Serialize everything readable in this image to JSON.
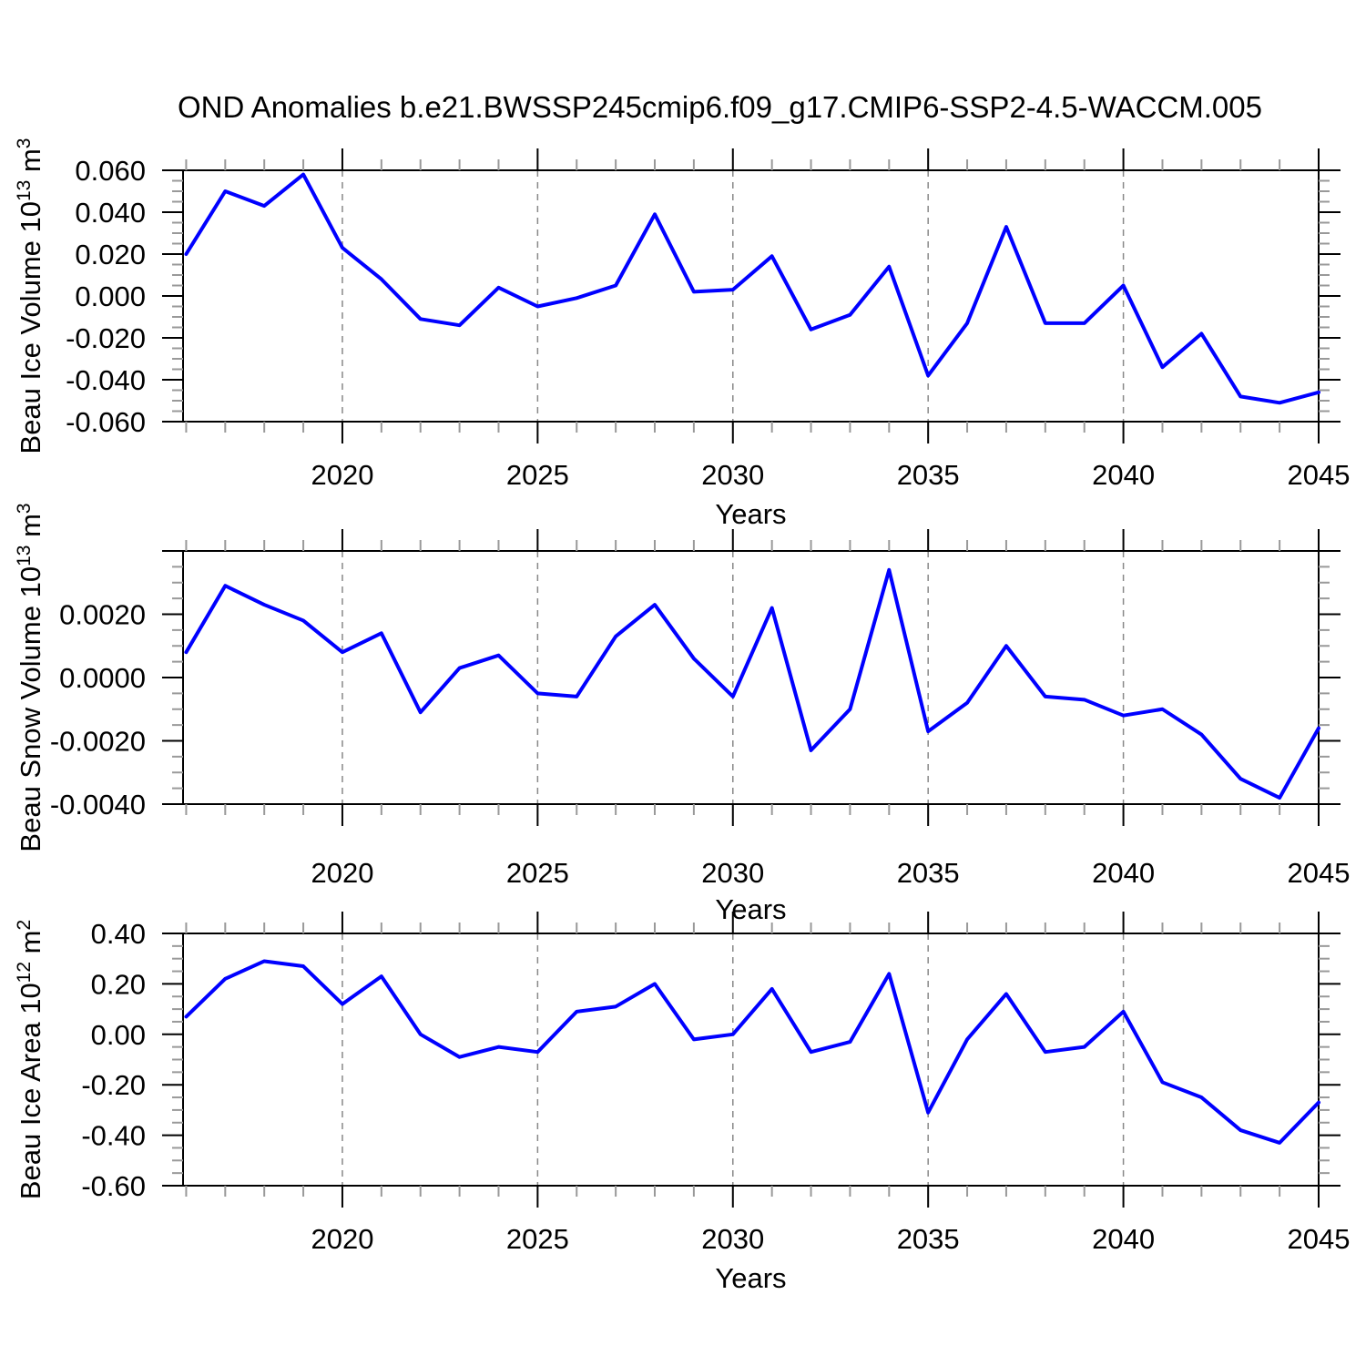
{
  "title": "OND Anomalies b.e21.BWSSP245cmip6.f09_g17.CMIP6-SSP2-4.5-WACCM.005",
  "colors": {
    "background": "#ffffff",
    "line": "#0000ff",
    "axis": "#000000",
    "minor_tick": "#999999",
    "gridline": "#888888",
    "text": "#000000"
  },
  "x_axis": {
    "label": "Years",
    "years": [
      2016,
      2017,
      2018,
      2019,
      2020,
      2021,
      2022,
      2023,
      2024,
      2025,
      2026,
      2027,
      2028,
      2029,
      2030,
      2031,
      2032,
      2033,
      2034,
      2035,
      2036,
      2037,
      2038,
      2039,
      2040,
      2041,
      2042,
      2043,
      2044,
      2045
    ],
    "major_tick_years": [
      2020,
      2025,
      2030,
      2035,
      2040,
      2045
    ],
    "tick_labels": [
      "2020",
      "2025",
      "2030",
      "2035",
      "2040",
      "2045"
    ],
    "gridline_years": [
      2020,
      2025,
      2030,
      2035,
      2040
    ],
    "xlim": [
      2015.92,
      2045
    ],
    "minor_step_years": 1
  },
  "chart_data": [
    {
      "type": "line",
      "name": "ice-volume",
      "title": "",
      "xlabel": "Years",
      "ylabel": "Beau Ice Volume 10^13 m^3",
      "ylim": [
        -0.06,
        0.06
      ],
      "y_major_ticks": [
        0.06,
        0.04,
        0.02,
        0,
        -0.02,
        -0.04,
        -0.06
      ],
      "y_tick_labels": [
        "0.060",
        "0.040",
        "0.020",
        "0.000",
        "-0.020",
        "-0.040",
        "-0.060"
      ],
      "y_minor_step": 0.005,
      "grid": "vertical-dashed",
      "legend": "none",
      "values": [
        0.02,
        0.05,
        0.043,
        0.058,
        0.023,
        0.008,
        -0.011,
        -0.014,
        0.004,
        -0.005,
        -0.001,
        0.005,
        0.039,
        0.002,
        0.003,
        0.019,
        -0.016,
        -0.009,
        0.014,
        -0.038,
        -0.013,
        0.033,
        -0.013,
        -0.013,
        0.005,
        -0.034,
        -0.018,
        -0.048,
        -0.051,
        -0.046
      ]
    },
    {
      "type": "line",
      "name": "snow-volume",
      "title": "",
      "xlabel": "Years",
      "ylabel": "Beau Snow Volume 10^13 m^3",
      "ylim": [
        -0.004,
        0.004
      ],
      "y_major_ticks": [
        0.004,
        0.002,
        0,
        -0.002,
        -0.004
      ],
      "y_tick_labels": [
        "",
        "0.0020",
        "0.0000",
        "-0.0020",
        "-0.0040"
      ],
      "y_minor_step": 0.0005,
      "grid": "vertical-dashed",
      "legend": "none",
      "values": [
        0.0008,
        0.0029,
        0.0023,
        0.0018,
        0.0008,
        0.0014,
        -0.0011,
        0.0003,
        0.0007,
        -0.0005,
        -0.0006,
        0.0013,
        0.0023,
        0.0006,
        -0.0006,
        0.0022,
        -0.0023,
        -0.001,
        0.0034,
        -0.0017,
        -0.0008,
        0.001,
        -0.0006,
        -0.0007,
        -0.0012,
        -0.001,
        -0.0018,
        -0.0032,
        -0.0038,
        -0.0016
      ]
    },
    {
      "type": "line",
      "name": "ice-area",
      "title": "",
      "xlabel": "Years",
      "ylabel": "Beau Ice Area 10^12 m^2",
      "ylim": [
        -0.6,
        0.4
      ],
      "y_major_ticks": [
        0.4,
        0.2,
        0,
        -0.2,
        -0.4,
        -0.6
      ],
      "y_tick_labels": [
        "0.40",
        "0.20",
        "0.00",
        "-0.20",
        "-0.40",
        "-0.60"
      ],
      "y_minor_step": 0.05,
      "grid": "vertical-dashed",
      "legend": "none",
      "values": [
        0.07,
        0.22,
        0.29,
        0.27,
        0.12,
        0.23,
        0.0,
        -0.09,
        -0.05,
        -0.07,
        0.09,
        0.11,
        0.2,
        -0.02,
        0.0,
        0.18,
        -0.07,
        -0.03,
        0.24,
        -0.31,
        -0.02,
        0.16,
        -0.07,
        -0.05,
        0.09,
        -0.19,
        -0.25,
        -0.38,
        -0.43,
        -0.27
      ]
    }
  ]
}
